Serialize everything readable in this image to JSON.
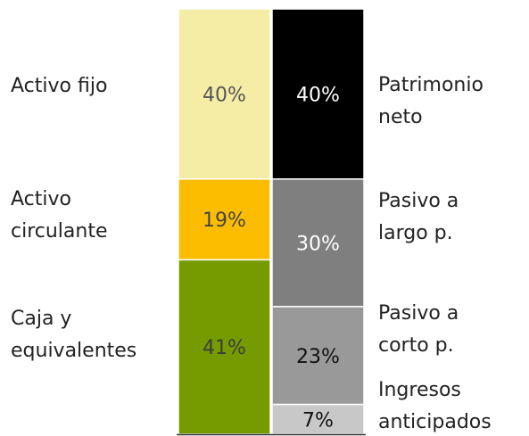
{
  "chart_data": {
    "type": "balance",
    "stacks": [
      {
        "names": [
          [
            "Activo fijo"
          ],
          [
            "Activo",
            "circulante"
          ],
          [
            "Caja y",
            "equivalentes"
          ]
        ],
        "values": [
          40,
          19,
          41
        ],
        "value_labels": [
          "40%",
          "19%",
          "41%"
        ],
        "colors": [
          "#f5eda6",
          "#fcbc00",
          "#759b00"
        ],
        "text_colors": [
          "#555555",
          "#444444",
          "#3d3d3d"
        ]
      },
      {
        "names": [
          [
            "Patrimonio",
            "neto"
          ],
          [
            "Pasivo a",
            "largo p."
          ],
          [
            "Pasivo a",
            "corto p."
          ],
          [
            "Ingresos",
            "anticipados"
          ]
        ],
        "values": [
          40,
          30,
          23,
          7
        ],
        "value_labels": [
          "40%",
          "30%",
          "23%",
          "7%"
        ],
        "colors": [
          "#000000",
          "#7f7f7f",
          "#999999",
          "#c8c8c8"
        ],
        "text_colors": [
          "#ffffff",
          "#ffffff",
          "#111111",
          "#111111"
        ]
      }
    ]
  }
}
